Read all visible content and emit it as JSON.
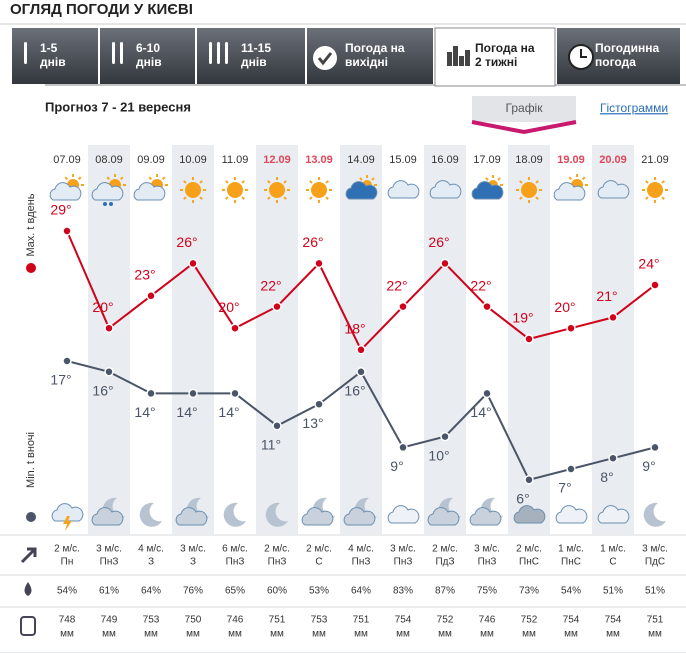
{
  "header": {
    "title": "ОГЛЯД ПОГОДИ У КИЄВІ"
  },
  "tabs": [
    [
      "1-5",
      "днів"
    ],
    [
      "6-10",
      "днів"
    ],
    [
      "11-15",
      "днів"
    ],
    [
      "Погода на",
      "вихідні"
    ],
    [
      "Погода на",
      "2 тижні"
    ],
    [
      "Погодинна",
      "погода"
    ]
  ],
  "subtitle": "Прогноз 7 - 21 вересня",
  "views": [
    "Графік",
    "Гістограмми"
  ],
  "chart_data": {
    "type": "line",
    "categories": [
      "07.09",
      "08.09",
      "09.09",
      "10.09",
      "11.09",
      "12.09",
      "13.09",
      "14.09",
      "15.09",
      "16.09",
      "17.09",
      "18.09",
      "19.09",
      "20.09",
      "21.09"
    ],
    "category_colors": [
      "#333333",
      "#333333",
      "#333333",
      "#333333",
      "#333333",
      "#e0475b",
      "#e0475b",
      "#333333",
      "#333333",
      "#333333",
      "#333333",
      "#333333",
      "#e0475b",
      "#e0475b",
      "#333333"
    ],
    "series": [
      {
        "name": "Max. t вдень",
        "color": "#d0021b",
        "values": [
          29,
          20,
          23,
          26,
          20,
          22,
          26,
          18,
          22,
          26,
          22,
          19,
          20,
          21,
          24
        ],
        "value_labels": [
          "29°",
          "20°",
          "23°",
          "26°",
          "20°",
          "22°",
          "26°",
          "18°",
          "22°",
          "26°",
          "22°",
          "19°",
          "20°",
          "21°",
          "24°"
        ]
      },
      {
        "name": "Min. t вночі",
        "color": "#4a5568",
        "values": [
          17,
          16,
          14,
          14,
          14,
          11,
          13,
          16,
          9,
          10,
          14,
          6,
          7,
          8,
          9
        ],
        "value_labels": [
          "17°",
          "16°",
          "14°",
          "14°",
          "14°",
          "11°",
          "13°",
          "16°",
          "9°",
          "10°",
          "14°",
          "6°",
          "7°",
          "8°",
          "9°"
        ]
      }
    ]
  },
  "table": {
    "wind": {
      "values": [
        2,
        3,
        4,
        3,
        6,
        2,
        2,
        4,
        3,
        2,
        3,
        2,
        1,
        1,
        3
      ],
      "value_labels": [
        "2 м/с.",
        "3 м/с.",
        "4 м/с.",
        "3 м/с.",
        "6 м/с.",
        "2 м/с.",
        "2 м/с.",
        "4 м/с.",
        "3 м/с.",
        "2 м/с.",
        "3 м/с.",
        "2 м/с.",
        "1 м/с.",
        "1 м/с.",
        "3 м/с."
      ],
      "directions": [
        "Пн",
        "ПнЗ",
        "З",
        "З",
        "ПнЗ",
        "ПнЗ",
        "С",
        "ПнЗ",
        "ПнЗ",
        "ПдЗ",
        "ПнЗ",
        "ПнС",
        "ПнС",
        "С",
        "ПдС"
      ]
    },
    "humidity": {
      "values": [
        54,
        61,
        64,
        76,
        65,
        60,
        53,
        64,
        83,
        87,
        75,
        73,
        54,
        51,
        51
      ],
      "value_labels": [
        "54%",
        "61%",
        "64%",
        "76%",
        "65%",
        "60%",
        "53%",
        "64%",
        "83%",
        "87%",
        "75%",
        "73%",
        "54%",
        "51%",
        "51%"
      ]
    },
    "pressure": {
      "values": [
        748,
        749,
        753,
        750,
        746,
        751,
        753,
        751,
        754,
        752,
        746,
        752,
        754,
        754,
        751
      ],
      "unit": "мм"
    }
  }
}
